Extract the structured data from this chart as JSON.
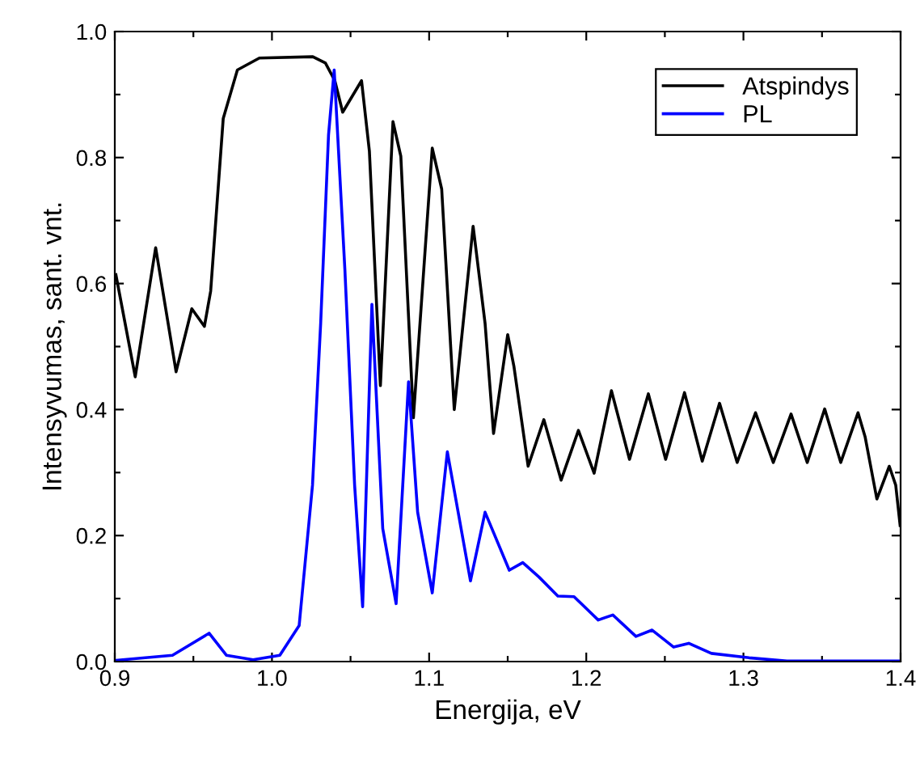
{
  "chart_data": {
    "type": "line",
    "xlabel": "Energija, eV",
    "ylabel": "Intensyvumas, sant. vnt.",
    "xlim": [
      0.9,
      1.4
    ],
    "ylim": [
      0.0,
      1.0
    ],
    "xticks": [
      {
        "value": 0.9,
        "label": "0.9"
      },
      {
        "value": 0.95,
        "label": null
      },
      {
        "value": 1.0,
        "label": "1.0"
      },
      {
        "value": 1.05,
        "label": null
      },
      {
        "value": 1.1,
        "label": "1.1"
      },
      {
        "value": 1.15,
        "label": null
      },
      {
        "value": 1.2,
        "label": "1.2"
      },
      {
        "value": 1.25,
        "label": null
      },
      {
        "value": 1.3,
        "label": "1.3"
      },
      {
        "value": 1.35,
        "label": null
      },
      {
        "value": 1.4,
        "label": "1.4"
      }
    ],
    "yticks": [
      {
        "value": 0.0,
        "label": "0.0"
      },
      {
        "value": 0.1,
        "label": null
      },
      {
        "value": 0.2,
        "label": "0.2"
      },
      {
        "value": 0.3,
        "label": null
      },
      {
        "value": 0.4,
        "label": "0.4"
      },
      {
        "value": 0.5,
        "label": null
      },
      {
        "value": 0.6,
        "label": "0.6"
      },
      {
        "value": 0.7,
        "label": null
      },
      {
        "value": 0.8,
        "label": "0.8"
      },
      {
        "value": 0.9,
        "label": null
      },
      {
        "value": 1.0,
        "label": "1.0"
      }
    ],
    "grid": false,
    "legend": "top right",
    "marker": "none",
    "line_style": "solid",
    "series": [
      {
        "name": "Atspindys",
        "color": "#000000",
        "x": [
          0.9007,
          0.913,
          0.926,
          0.939,
          0.949,
          0.957,
          0.961,
          0.969,
          0.978,
          0.992,
          1.026,
          1.034,
          1.04,
          1.045,
          1.057,
          1.062,
          1.069,
          1.077,
          1.082,
          1.09,
          1.102,
          1.108,
          1.116,
          1.128,
          1.1356,
          1.141,
          1.15,
          1.154,
          1.163,
          1.173,
          1.184,
          1.195,
          1.205,
          1.216,
          1.2275,
          1.2395,
          1.2505,
          1.2625,
          1.2738,
          1.2848,
          1.296,
          1.3077,
          1.319,
          1.3303,
          1.3406,
          1.3517,
          1.3619,
          1.3729,
          1.3774,
          1.3849,
          1.3928,
          1.3969,
          1.3997
        ],
        "values": [
          0.614,
          0.452,
          0.657,
          0.46,
          0.56,
          0.532,
          0.588,
          0.862,
          0.939,
          0.958,
          0.96,
          0.95,
          0.922,
          0.872,
          0.922,
          0.81,
          0.438,
          0.857,
          0.802,
          0.387,
          0.815,
          0.75,
          0.4,
          0.691,
          0.537,
          0.362,
          0.519,
          0.468,
          0.31,
          0.384,
          0.288,
          0.367,
          0.299,
          0.43,
          0.321,
          0.425,
          0.321,
          0.427,
          0.318,
          0.41,
          0.316,
          0.395,
          0.316,
          0.393,
          0.316,
          0.401,
          0.316,
          0.395,
          0.357,
          0.258,
          0.31,
          0.28,
          0.216
        ]
      },
      {
        "name": "PL",
        "color": "#0000ff",
        "x": [
          0.9007,
          0.9367,
          0.96,
          0.971,
          0.988,
          1.005,
          1.0173,
          1.0258,
          1.031,
          1.036,
          1.0396,
          1.0464,
          1.0526,
          1.0577,
          1.0636,
          1.0705,
          1.079,
          1.0869,
          1.0927,
          1.102,
          1.1116,
          1.1263,
          1.1356,
          1.151,
          1.1596,
          1.17,
          1.1819,
          1.1922,
          1.2076,
          1.2169,
          1.2316,
          1.2419,
          1.2556,
          1.2652,
          1.2796,
          1.3036,
          1.3277,
          1.3997
        ],
        "values": [
          0.002,
          0.01,
          0.045,
          0.01,
          0.003,
          0.01,
          0.057,
          0.28,
          0.537,
          0.836,
          0.939,
          0.622,
          0.28,
          0.087,
          0.567,
          0.211,
          0.092,
          0.444,
          0.237,
          0.109,
          0.333,
          0.128,
          0.237,
          0.145,
          0.157,
          0.134,
          0.104,
          0.103,
          0.066,
          0.074,
          0.04,
          0.05,
          0.023,
          0.029,
          0.013,
          0.006,
          0.001,
          0.001
        ]
      }
    ]
  }
}
